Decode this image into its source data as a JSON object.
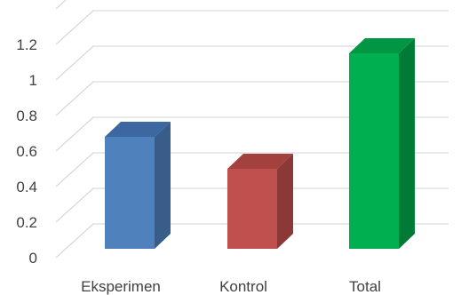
{
  "chart_data": {
    "type": "bar",
    "categories": [
      "Eksperimen",
      "Kontrol",
      "Total"
    ],
    "values": [
      0.63,
      0.45,
      1.1
    ],
    "ylim": [
      0,
      1.3
    ],
    "yticks": [
      "0",
      "0.2",
      "0.4",
      "0.6",
      "0.8",
      "1",
      "1.2"
    ],
    "ytick_values": [
      0,
      0.2,
      0.4,
      0.6,
      0.8,
      1.0,
      1.2
    ],
    "grid": true,
    "style": "3d-column",
    "colors": [
      {
        "front": "#4F81BD",
        "side": "#385D8A",
        "top": "#3C67A0"
      },
      {
        "front": "#C0504D",
        "side": "#8C3836",
        "top": "#A3413E"
      },
      {
        "front": "#00B050",
        "side": "#007A37",
        "top": "#009643"
      }
    ],
    "grid_color": "#D9D9D9"
  }
}
